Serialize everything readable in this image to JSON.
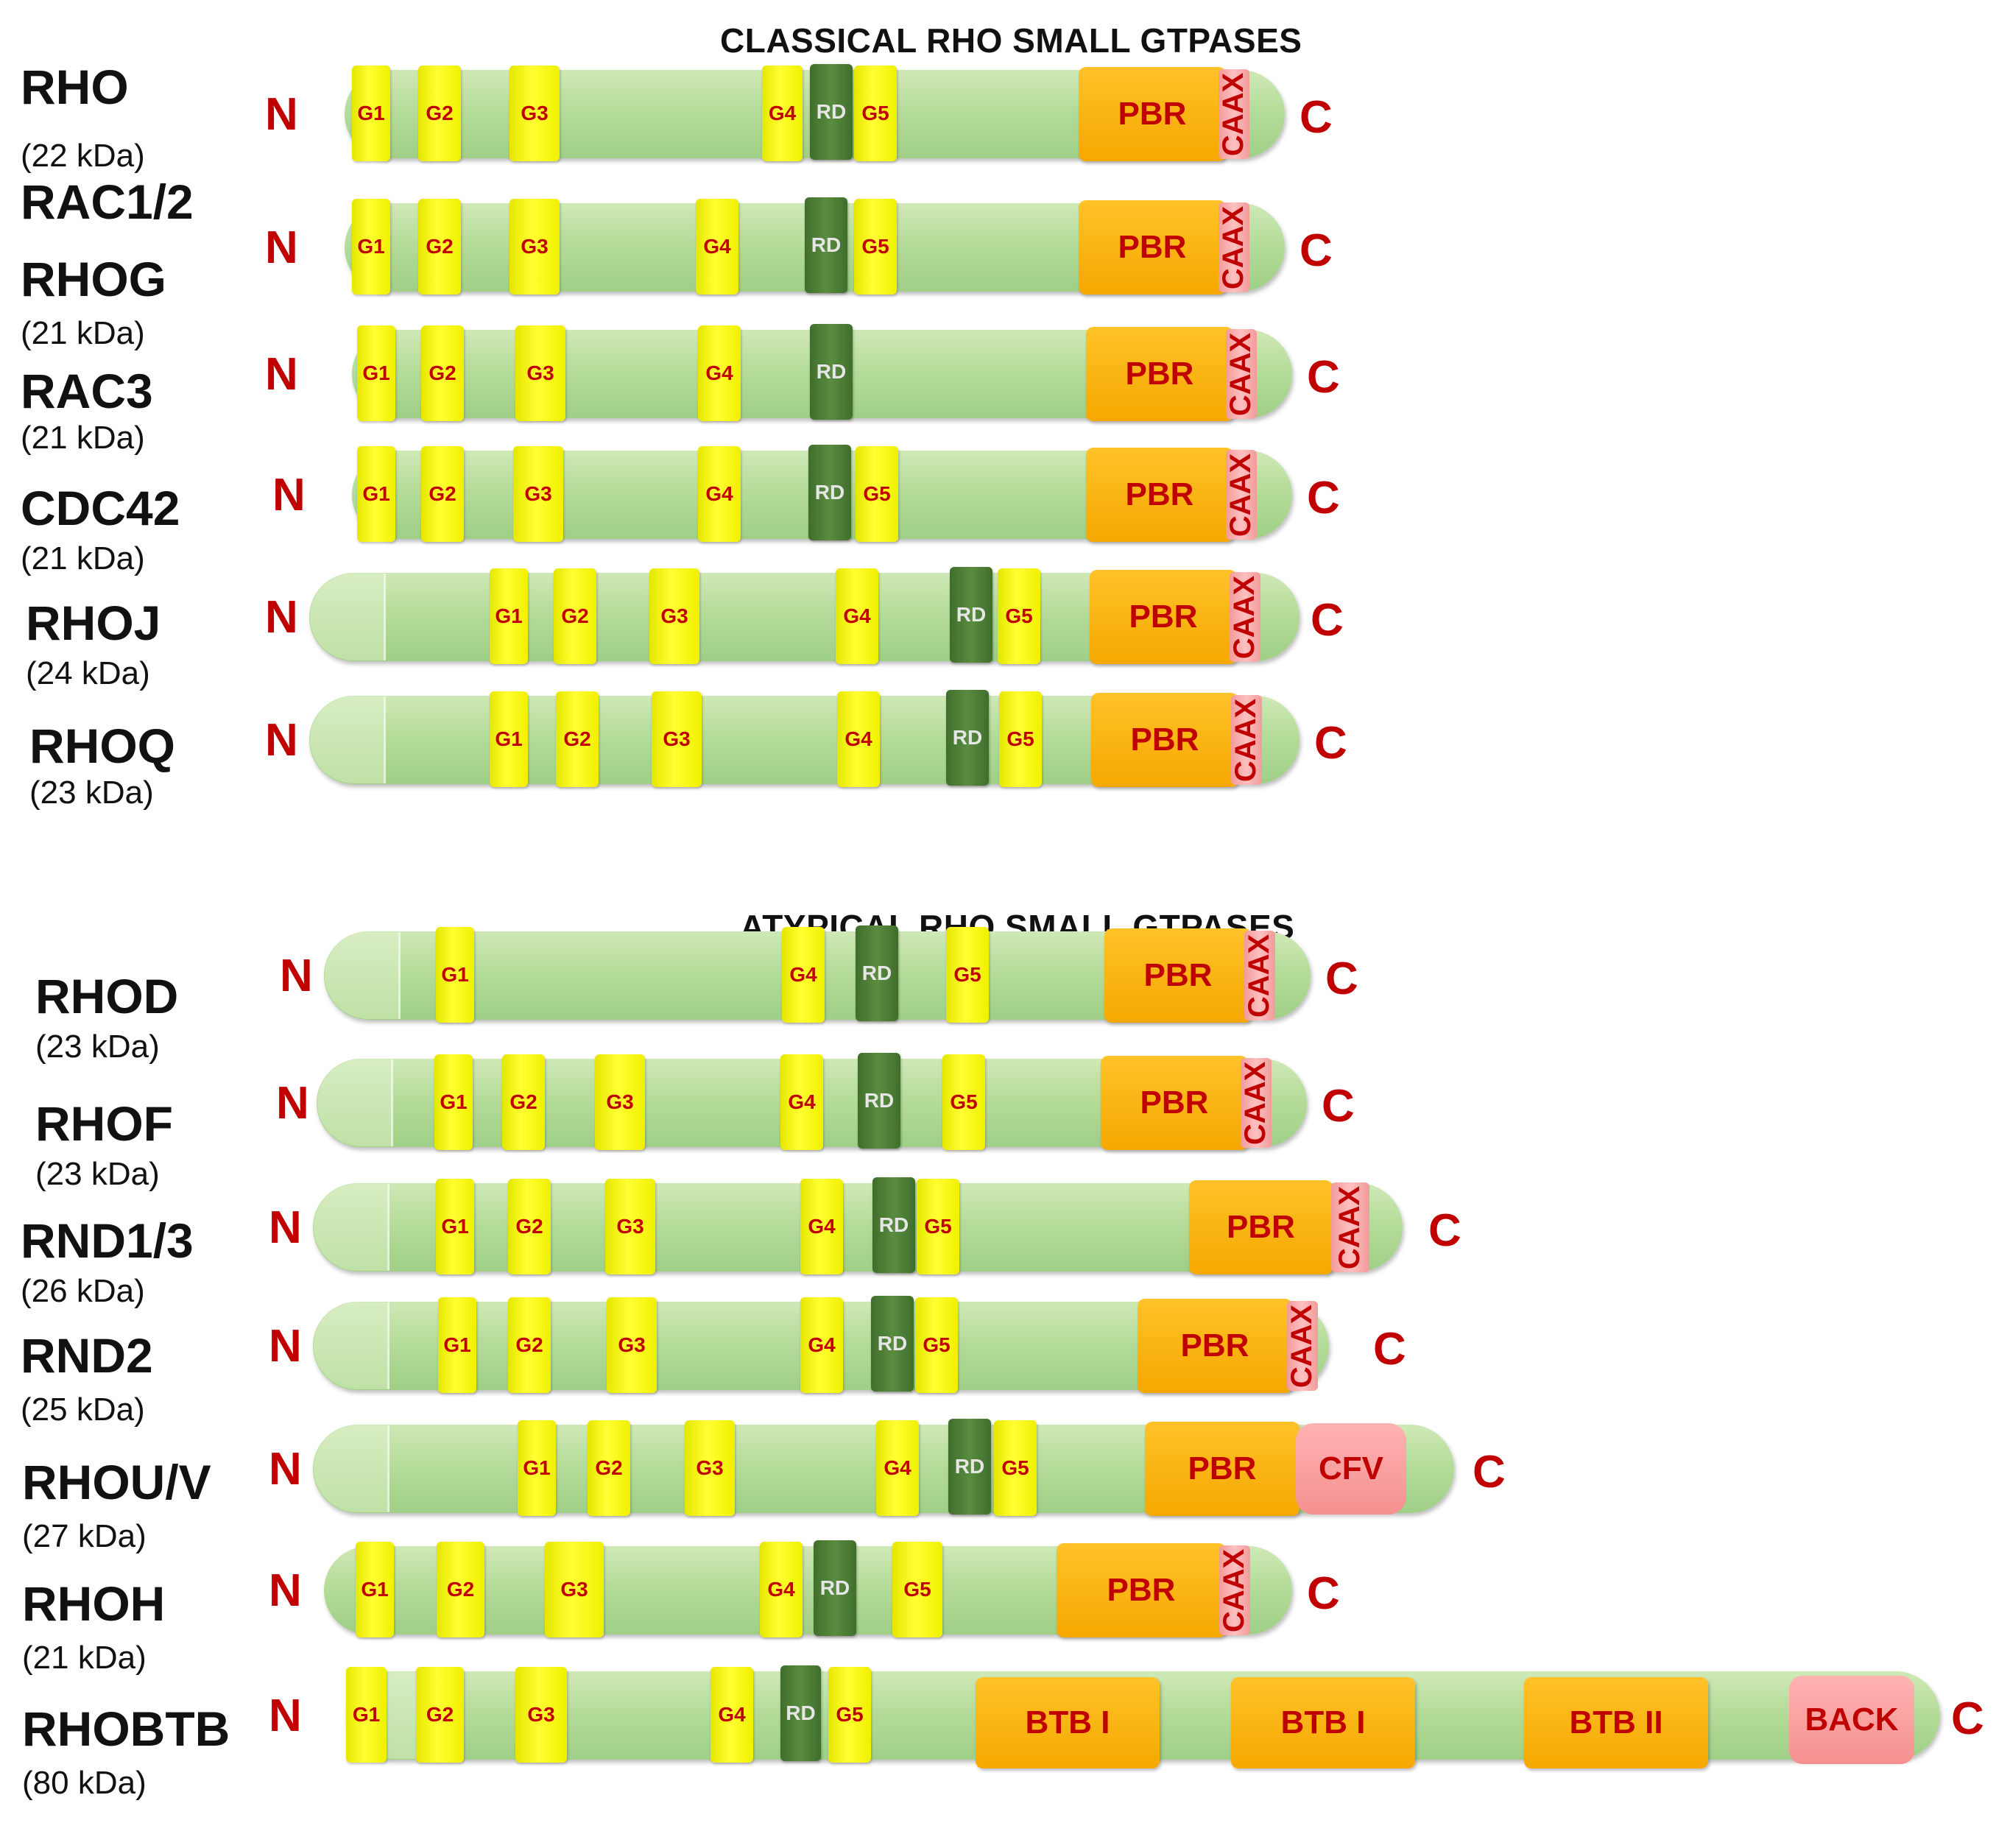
{
  "sections": {
    "classical_title": "CLASSICAL RHO SMALL GTPASES",
    "atypical_title": "ATYPICAL RHO SMALL GTPASES"
  },
  "terminal_labels": {
    "n": "N",
    "c": "C"
  },
  "domain_labels": {
    "g1": "G1",
    "g2": "G2",
    "g3": "G3",
    "g4": "G4",
    "g5": "G5",
    "rd": "RD",
    "pbr": "PBR",
    "caax": "CAAX",
    "cfv": "CFV",
    "btb1": "BTB I",
    "btb2": "BTB II",
    "back": "BACK"
  },
  "proteins": [
    {
      "name": "RHO",
      "mass": "(22 kDa)",
      "group": "classical"
    },
    {
      "name": "RAC1/2",
      "name2": "RHOG",
      "mass": "(21 kDa)",
      "group": "classical"
    },
    {
      "name": "RAC3",
      "mass": "(21 kDa)",
      "group": "classical"
    },
    {
      "name": "CDC42",
      "mass": "(21 kDa)",
      "group": "classical"
    },
    {
      "name": "RHOJ",
      "mass": "(24 kDa)",
      "group": "classical"
    },
    {
      "name": "RHOQ",
      "mass": "(23 kDa)",
      "group": "classical"
    },
    {
      "name": "RHOD",
      "mass": "(23 kDa)",
      "group": "atypical"
    },
    {
      "name": "RHOF",
      "mass": "(23 kDa)",
      "group": "atypical"
    },
    {
      "name": "RND1/3",
      "mass": "(26 kDa)",
      "group": "atypical"
    },
    {
      "name": "RND2",
      "mass": "(25 kDa)",
      "group": "atypical"
    },
    {
      "name": "RHOU/V",
      "mass": "(27 kDa)",
      "group": "atypical"
    },
    {
      "name": "RHOH",
      "mass": "(21 kDa)",
      "group": "atypical"
    },
    {
      "name": "RHOBTB",
      "mass": "(80 kDa)",
      "group": "atypical"
    }
  ],
  "colors": {
    "g_box": "#ffff33",
    "rd_box": "#4f7f37",
    "pbr_box": "#f5a800",
    "caax_box": "#f7a8a8",
    "label_red": "#c00000",
    "bar_green": "#b5dc9a"
  }
}
